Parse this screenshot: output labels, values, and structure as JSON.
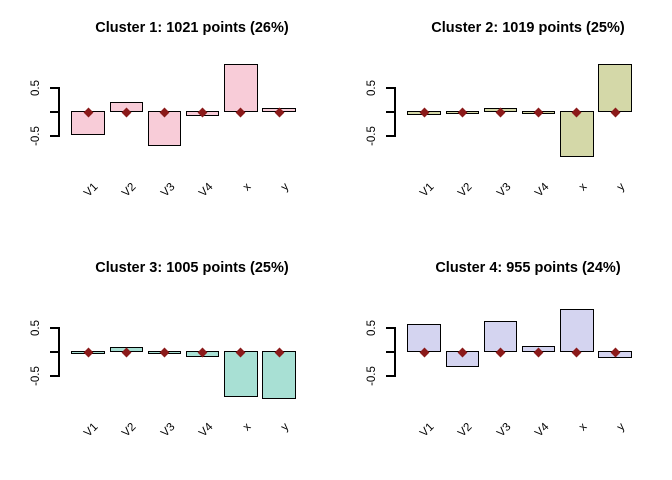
{
  "figure": {
    "background": "#ffffff",
    "text_color": "#000000",
    "axis_color": "#000000",
    "bar_border_color": "#000000",
    "marker_color": "#8b1a1a",
    "marker_shape": "diamond"
  },
  "chart_data": [
    {
      "type": "bar",
      "title": "Cluster 1: 1021 points (26%)",
      "categories": [
        "V1",
        "V2",
        "V3",
        "V4",
        "x",
        "y"
      ],
      "values": [
        -0.48,
        0.21,
        -0.71,
        -0.08,
        1.0,
        0.08
      ],
      "bar_color": "#f8ccd8",
      "marker_value": 0,
      "ylim": [
        -1.1,
        1.1
      ],
      "yticks": [
        0.5,
        0,
        -0.5
      ],
      "ytick_labels": [
        "0.5",
        "",
        "-0.5"
      ],
      "grid": false,
      "legend": false
    },
    {
      "type": "bar",
      "title": "Cluster 2: 1019 points (25%)",
      "categories": [
        "V1",
        "V2",
        "V3",
        "V4",
        "x",
        "y"
      ],
      "values": [
        -0.07,
        -0.01,
        0.08,
        0.0,
        -0.93,
        0.99
      ],
      "bar_color": "#d4d8a8",
      "marker_value": 0,
      "ylim": [
        -1.1,
        1.1
      ],
      "yticks": [
        0.5,
        0,
        -0.5
      ],
      "ytick_labels": [
        "0.5",
        "",
        "-0.5"
      ],
      "grid": false,
      "legend": false
    },
    {
      "type": "bar",
      "title": "Cluster 3: 1005 points (25%)",
      "categories": [
        "V1",
        "V2",
        "V3",
        "V4",
        "x",
        "y"
      ],
      "values": [
        0.0,
        0.11,
        -0.01,
        -0.1,
        -0.93,
        -0.97
      ],
      "bar_color": "#a8e0d4",
      "marker_value": 0,
      "ylim": [
        -1.1,
        1.1
      ],
      "yticks": [
        0.5,
        0,
        -0.5
      ],
      "ytick_labels": [
        "0.5",
        "",
        "-0.5"
      ],
      "grid": false,
      "legend": false
    },
    {
      "type": "bar",
      "title": "Cluster 4: 955 points (24%)",
      "categories": [
        "V1",
        "V2",
        "V3",
        "V4",
        "x",
        "y"
      ],
      "values": [
        0.58,
        -0.32,
        0.65,
        0.13,
        0.89,
        -0.13
      ],
      "bar_color": "#d4d4f0",
      "marker_value": 0,
      "ylim": [
        -1.1,
        1.1
      ],
      "yticks": [
        0.5,
        0,
        -0.5
      ],
      "ytick_labels": [
        "0.5",
        "",
        "-0.5"
      ],
      "grid": false,
      "legend": false
    }
  ]
}
